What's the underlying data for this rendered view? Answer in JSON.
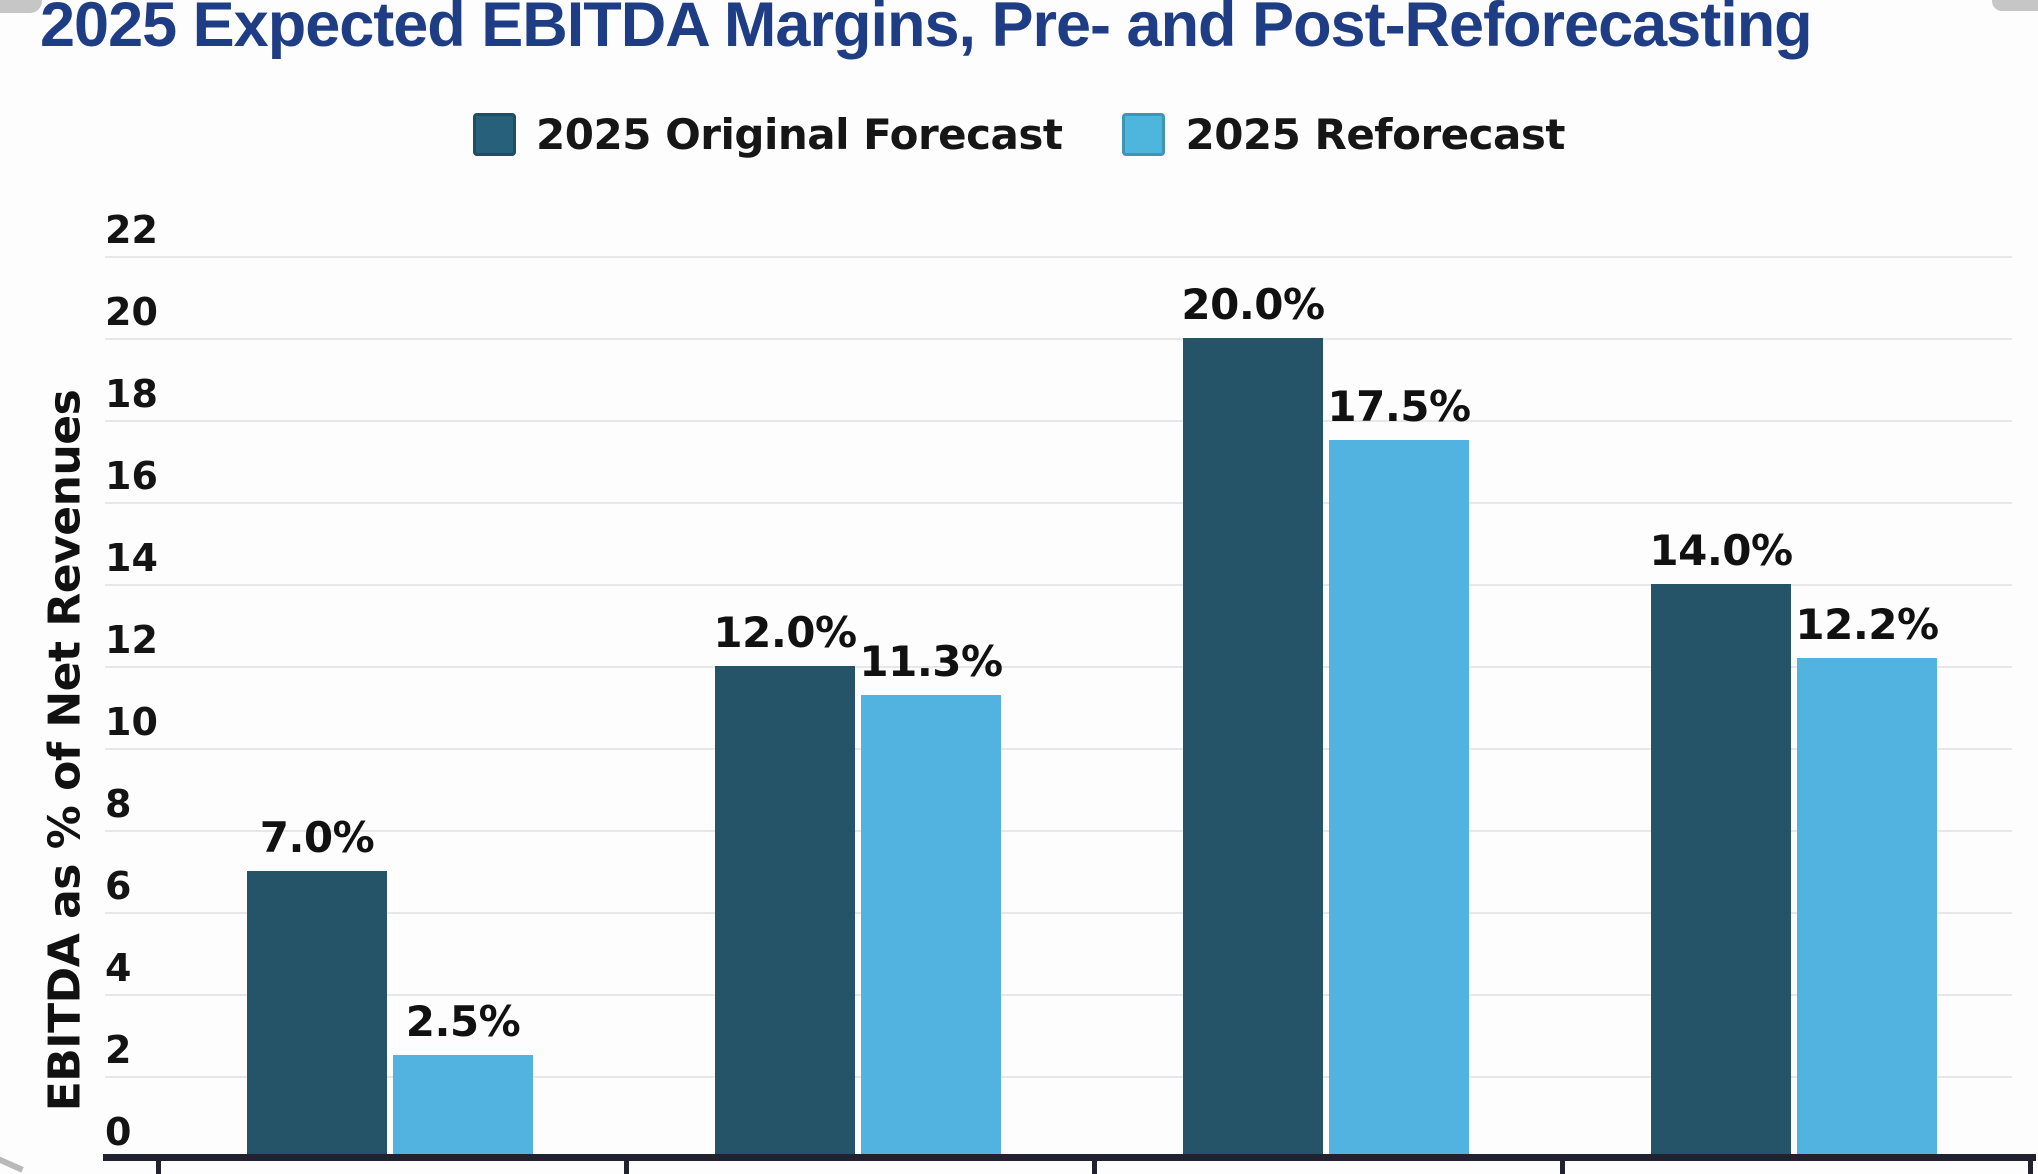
{
  "title": {
    "text": "2025 Expected EBITDA Margins, Pre- and Post-Reforecasting",
    "color": "#1e3d85"
  },
  "legend": {
    "items": [
      {
        "label": "2025 Original Forecast",
        "swatch_color": "#27607a"
      },
      {
        "label": "2025 Reforecast",
        "swatch_color": "#4eb6dd"
      }
    ]
  },
  "chart_data": {
    "type": "bar",
    "title": "2025 Expected EBITDA Margins, Pre- and Post-Reforecasting",
    "xlabel": "",
    "ylabel": "EBITDA as % of Net Revenues",
    "ylim": [
      0,
      22
    ],
    "yticks": [
      0,
      2,
      4,
      6,
      8,
      10,
      12,
      14,
      16,
      18,
      20,
      22
    ],
    "grid": true,
    "legend_position": "top",
    "categories": [
      "",
      "",
      "",
      ""
    ],
    "series": [
      {
        "name": "2025 Original Forecast",
        "color": "#255469",
        "values": [
          7.0,
          12.0,
          20.0,
          14.0
        ],
        "labels": [
          "7.0%",
          "12.0%",
          "20.0%",
          "14.0%"
        ]
      },
      {
        "name": "2025 Reforecast",
        "color": "#52b3e0",
        "values": [
          2.5,
          11.3,
          17.5,
          12.2
        ],
        "labels": [
          "2.5%",
          "11.3%",
          "17.5%",
          "12.2%"
        ]
      }
    ]
  },
  "axis": {
    "line_color": "#212130",
    "grid_color": "#e7e7e7"
  }
}
